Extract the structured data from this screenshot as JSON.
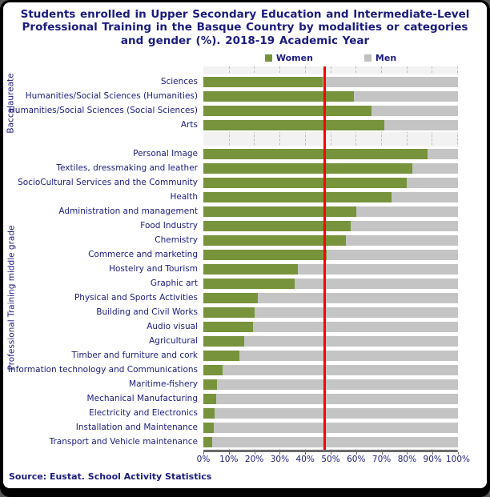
{
  "title": "Students enrolled in Upper Secondary Education and Intermediate-Level Professional Training in the Basque Country by modalities or categories and gender (%). 2018-19 Academic Year",
  "legend": {
    "women": "Women",
    "men": "Men"
  },
  "source": "Source: Eustat. School Activity Statistics",
  "colors": {
    "women": "#77933C",
    "men": "#C4C4C4",
    "legend_men": "#C0C0C0",
    "reference_line": "#FF0000",
    "text": "#1B1B7E",
    "plot_background": "#F2F2F2"
  },
  "x_axis": {
    "min": 0,
    "max": 100,
    "tick_labels": [
      "0%",
      "10%",
      "20%",
      "30%",
      "40%",
      "50%",
      "60%",
      "70%",
      "80%",
      "90%",
      "100%"
    ]
  },
  "reference_line_percent": 47.7,
  "chart_data": {
    "type": "bar",
    "orientation": "horizontal",
    "stacked": true,
    "stack_total": 100,
    "title": "Students enrolled in Upper Secondary Education and Intermediate-Level Professional Training in the Basque Country by modalities or categories and gender (%). 2018-19 Academic Year",
    "legend_entries": [
      "Women",
      "Men"
    ],
    "legend_position": "top",
    "xlim": [
      0,
      100
    ],
    "grid": true,
    "annotations": [
      "red vertical reference line at ~47.7%"
    ],
    "sections": [
      {
        "name": "Baccalaureate",
        "categories": [
          "Sciences",
          "Humanities/Social Sciences (Humanities)",
          "Humanities/Social Sciences (Social Sciences)",
          "Arts"
        ],
        "series": [
          {
            "name": "Women",
            "values": [
              47,
              59,
              66,
              71
            ]
          },
          {
            "name": "Men",
            "values": [
              53,
              41,
              34,
              29
            ]
          }
        ]
      },
      {
        "name": "Professional Training middle grade",
        "categories": [
          "Personal Image",
          "Textiles, dressmaking and leather",
          "SocioCultural Services and the Community",
          "Health",
          "Administration and management",
          "Food Industry",
          "Chemistry",
          "Commerce and marketing",
          "Hostelry and Tourism",
          "Graphic art",
          "Physical and Sports Activities",
          "Building and Civil Works",
          "Audio visual",
          "Agricultural",
          "Timber and furniture and cork",
          "Information technology and Communications",
          "Maritime-fishery",
          "Mechanical Manufacturing",
          "Electricity and Electronics",
          "Installation and Maintenance",
          "Transport and Vehicle maintenance"
        ],
        "series": [
          {
            "name": "Women",
            "values": [
              88,
              82,
              80,
              74,
              60,
              58,
              56,
              48.5,
              37,
              36,
              21.5,
              20,
              19.5,
              16,
              14,
              7.5,
              5.5,
              5,
              4.5,
              4,
              3.5
            ]
          },
          {
            "name": "Men",
            "values": [
              12,
              18,
              20,
              26,
              40,
              42,
              44,
              51.5,
              63,
              64,
              78.5,
              80,
              80.5,
              84,
              86,
              92.5,
              94.5,
              95,
              95.5,
              96,
              96.5
            ]
          }
        ]
      }
    ]
  }
}
